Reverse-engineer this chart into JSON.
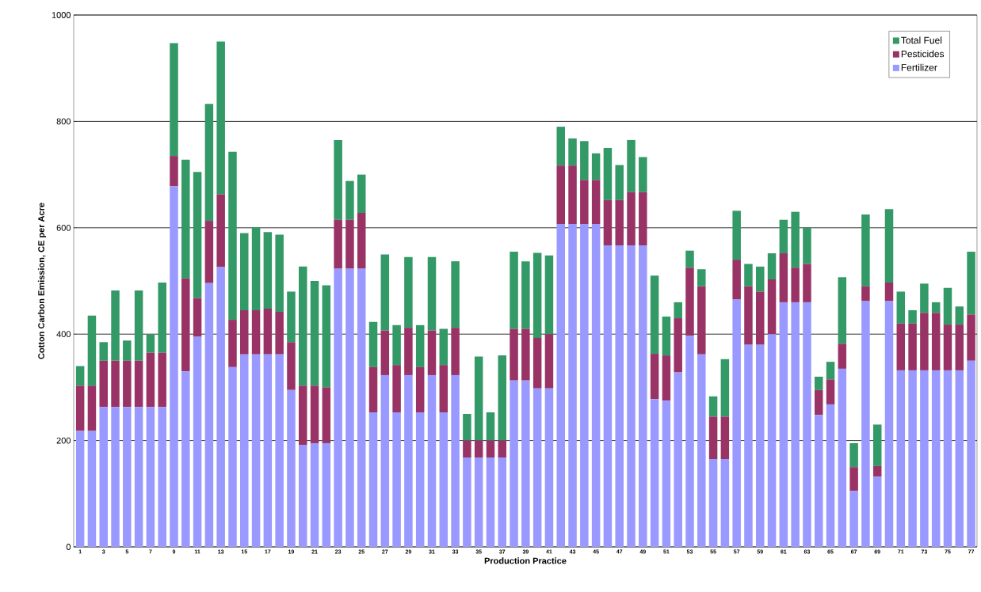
{
  "chart_data": {
    "type": "bar",
    "stacked": true,
    "xlabel": "Production Practice",
    "ylabel": "Cotton Carbon Emission, CE per Acre",
    "categories": [
      "1",
      null,
      "3",
      null,
      "5",
      null,
      "7",
      null,
      "9",
      null,
      "11",
      null,
      "13",
      null,
      "15",
      null,
      "17",
      null,
      "19",
      null,
      "21",
      null,
      "23",
      null,
      "25",
      null,
      "27",
      null,
      "29",
      null,
      "31",
      null,
      "33",
      null,
      "35",
      null,
      "37",
      null,
      "39",
      null,
      "41",
      null,
      "43",
      null,
      "45",
      null,
      "47",
      null,
      "49",
      null,
      "51",
      null,
      "53",
      null,
      "55",
      null,
      "57",
      null,
      "59",
      null,
      "61",
      null,
      "63",
      null,
      "65",
      null,
      "67",
      null,
      "69",
      null,
      "71",
      null,
      "73",
      null,
      "75",
      null,
      "77"
    ],
    "series": [
      {
        "name": "Fertilizer",
        "color": "#9999ff",
        "values": [
          218,
          218,
          263,
          263,
          263,
          263,
          263,
          263,
          678,
          330,
          395,
          496,
          526,
          338,
          362,
          362,
          362,
          362,
          295,
          192,
          195,
          195,
          523,
          523,
          523,
          253,
          323,
          253,
          323,
          253,
          323,
          253,
          323,
          168,
          168,
          168,
          168,
          313,
          313,
          298,
          298,
          607,
          607,
          607,
          607,
          567,
          567,
          567,
          567,
          278,
          275,
          328,
          397,
          362,
          165,
          165,
          465,
          380,
          380,
          400,
          460,
          460,
          460,
          248,
          268,
          335,
          105,
          462,
          132,
          462,
          332,
          332,
          332,
          332,
          332,
          332,
          350
        ]
      },
      {
        "name": "Pesticides",
        "color": "#993366",
        "values": [
          85,
          85,
          87,
          87,
          87,
          87,
          102,
          102,
          57,
          175,
          73,
          117,
          137,
          89,
          83,
          83,
          86,
          80,
          90,
          111,
          108,
          105,
          92,
          92,
          105,
          85,
          84,
          89,
          89,
          85,
          84,
          89,
          89,
          32,
          32,
          32,
          32,
          97,
          97,
          95,
          102,
          110,
          110,
          83,
          83,
          85,
          85,
          100,
          100,
          85,
          85,
          102,
          128,
          128,
          80,
          80,
          75,
          110,
          100,
          103,
          92,
          65,
          72,
          47,
          47,
          47,
          45,
          28,
          20,
          35,
          88,
          88,
          108,
          108,
          86,
          86,
          87
        ]
      },
      {
        "name": "Total Fuel",
        "color": "#339966",
        "values": [
          37,
          132,
          35,
          132,
          38,
          132,
          35,
          132,
          212,
          223,
          237,
          220,
          287,
          316,
          145,
          156,
          144,
          145,
          95,
          224,
          197,
          192,
          150,
          73,
          72,
          85,
          143,
          75,
          133,
          79,
          138,
          68,
          125,
          50,
          158,
          53,
          160,
          145,
          127,
          160,
          148,
          73,
          51,
          73,
          50,
          98,
          66,
          98,
          66,
          147,
          73,
          30,
          32,
          32,
          38,
          108,
          92,
          42,
          47,
          49,
          63,
          105,
          68,
          25,
          33,
          125,
          45,
          135,
          78,
          138,
          60,
          25,
          55,
          20,
          69,
          34,
          118
        ]
      }
    ],
    "ylim": [
      0,
      1000
    ],
    "yticks": [
      0,
      200,
      400,
      600,
      800,
      1000
    ],
    "grid": "y",
    "legend": "top right"
  }
}
